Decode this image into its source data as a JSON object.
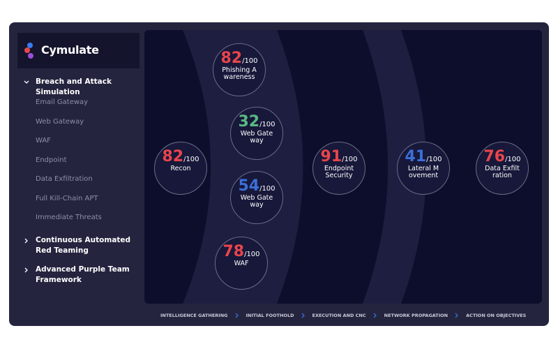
{
  "sidebar": {
    "logo": "Cymulate",
    "menu": [
      {
        "label": "Breach and Attack Simulation",
        "expanded": true,
        "children": [
          "Email Gateway",
          "Web Gateway",
          "WAF",
          "Endpoint",
          "Data Exfiltration",
          "Full Kill-Chain APT",
          "Immediate Threats"
        ]
      },
      {
        "label": "Continuous Automated Red Teaming",
        "expanded": false
      },
      {
        "label": "Advanced Purple Team Framework",
        "expanded": false
      }
    ]
  },
  "nodes": [
    {
      "score": 82,
      "max": "/100",
      "label": "Phishing Awareness",
      "color": "#e8454b"
    },
    {
      "score": 32,
      "max": "/100",
      "label": "Web Gateway",
      "color": "#59b983"
    },
    {
      "score": 54,
      "max": "/100",
      "label": "Web Gateway",
      "color": "#3b6fd8"
    },
    {
      "score": 78,
      "max": "/100",
      "label": "WAF",
      "color": "#e8454b"
    },
    {
      "score": 82,
      "max": "/100",
      "label": "Recon",
      "color": "#e8454b"
    },
    {
      "score": 91,
      "max": "/100",
      "label": "Endpoint Security",
      "color": "#e8454b"
    },
    {
      "score": 41,
      "max": "/100",
      "label": "Lateral Movement",
      "color": "#3b6fd8"
    },
    {
      "score": 76,
      "max": "/100",
      "label": "Data Exfiltration",
      "color": "#e8454b"
    }
  ],
  "stages": [
    "INTELLIGENCE GATHERING",
    "INITIAL FOOTHOLD",
    "EXECUTION AND CNC",
    "NETWORK PROPAGATION",
    "ACTION ON OBJECTIVES"
  ]
}
